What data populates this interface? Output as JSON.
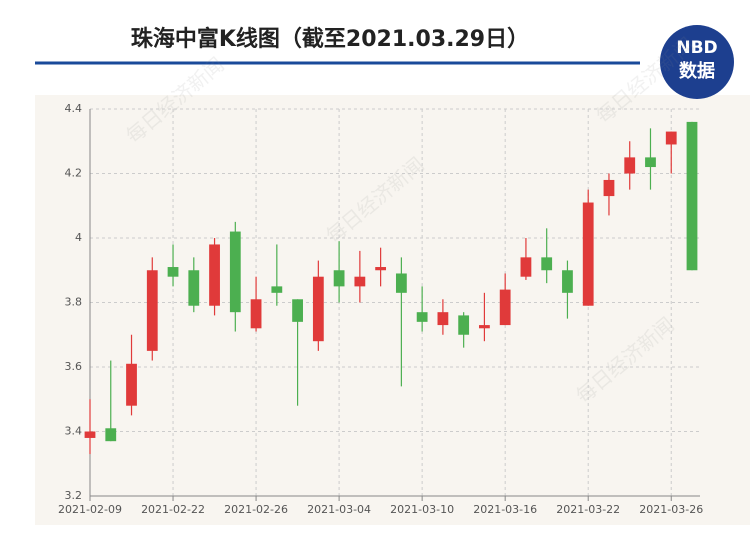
{
  "chart_data": {
    "type": "candlestick",
    "title": "珠海中富K线图（截至2021.03.29日）",
    "watermark": "每日经济新闻",
    "categories": [
      "2021-02-09",
      null,
      null,
      null,
      "2021-02-22",
      null,
      null,
      null,
      "2021-02-26",
      null,
      null,
      null,
      "2021-03-04",
      null,
      null,
      null,
      "2021-03-10",
      null,
      null,
      null,
      "2021-03-16",
      null,
      null,
      null,
      "2021-03-22",
      null,
      null,
      null,
      "2021-03-26",
      null
    ],
    "open": [
      3.38,
      3.41,
      3.48,
      3.65,
      3.91,
      3.9,
      3.79,
      4.02,
      3.72,
      3.85,
      3.81,
      3.68,
      3.9,
      3.85,
      3.9,
      3.89,
      3.77,
      3.73,
      3.76,
      3.72,
      3.73,
      3.88,
      3.94,
      3.9,
      3.79,
      4.13,
      4.2,
      4.25,
      4.29,
      4.36
    ],
    "high": [
      3.5,
      3.62,
      3.7,
      3.94,
      3.98,
      3.94,
      4.0,
      4.05,
      3.88,
      3.98,
      3.81,
      3.93,
      3.99,
      3.96,
      3.97,
      3.94,
      3.85,
      3.81,
      3.77,
      3.83,
      3.89,
      4.0,
      4.03,
      3.93,
      4.15,
      4.2,
      4.3,
      4.34,
      4.33,
      4.36
    ],
    "low": [
      3.33,
      3.37,
      3.45,
      3.62,
      3.85,
      3.77,
      3.76,
      3.71,
      3.71,
      3.79,
      3.48,
      3.65,
      3.8,
      3.8,
      3.85,
      3.54,
      3.71,
      3.7,
      3.66,
      3.68,
      3.73,
      3.87,
      3.86,
      3.75,
      3.79,
      4.07,
      4.15,
      4.15,
      4.2,
      3.9
    ],
    "close": [
      3.4,
      3.37,
      3.61,
      3.9,
      3.88,
      3.79,
      3.98,
      3.77,
      3.81,
      3.83,
      3.74,
      3.88,
      3.85,
      3.88,
      3.91,
      3.83,
      3.74,
      3.77,
      3.7,
      3.73,
      3.84,
      3.94,
      3.9,
      3.83,
      4.11,
      4.18,
      4.25,
      4.22,
      4.33,
      3.9
    ],
    "up_color": "#e03a3a",
    "down_color": "#4caf50",
    "ylim": [
      3.2,
      4.4
    ],
    "yticks": [
      3.2,
      3.4,
      3.6,
      3.8,
      4,
      4.2,
      4.4
    ],
    "grid": true
  },
  "logo": {
    "top": "NBD",
    "bottom": "数据"
  }
}
